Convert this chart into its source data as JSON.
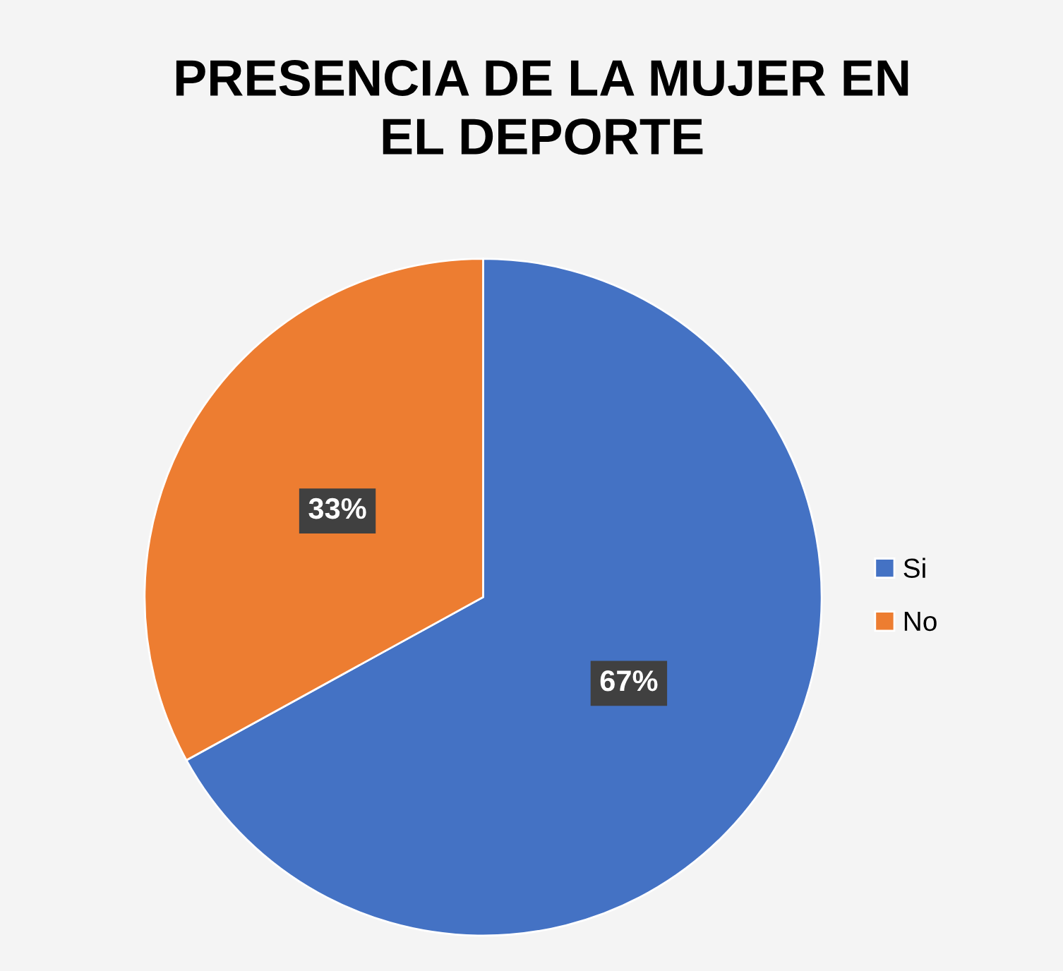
{
  "chart_data": {
    "type": "pie",
    "title": "PRESENCIA DE LA MUJER EN\nEL DEPORTE",
    "categories": [
      "Si",
      "No"
    ],
    "values": [
      67,
      33
    ],
    "colors": [
      "#4472c4",
      "#ed7d31"
    ],
    "value_labels": [
      "67%",
      "33%"
    ],
    "legend": "right"
  }
}
